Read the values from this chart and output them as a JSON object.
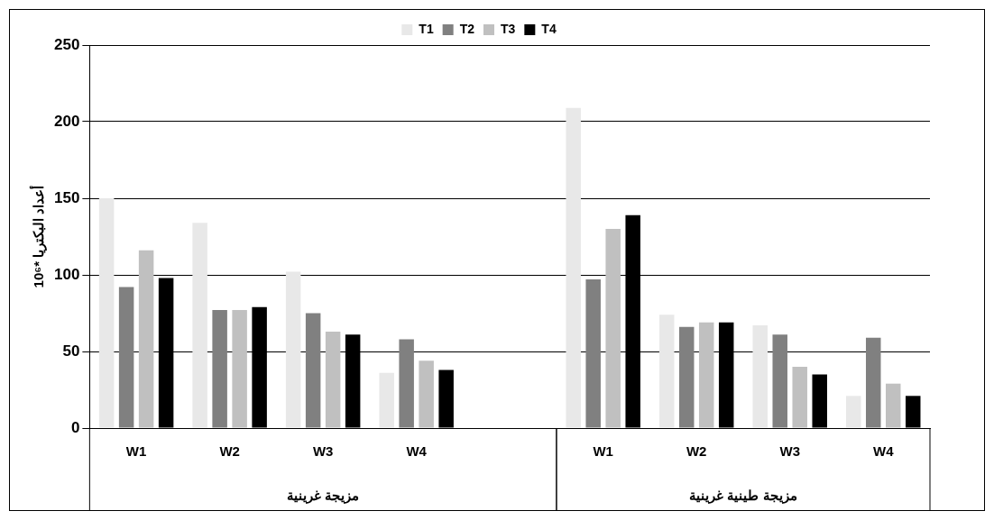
{
  "chart_data": {
    "type": "bar",
    "categories": [
      "W1",
      "W2",
      "W3",
      "W4",
      null,
      "W1",
      "W2",
      "W3",
      "W4"
    ],
    "ylabel": "أعداد البكتريا *10⁶",
    "series": [
      {
        "name": "T1",
        "color": "#e8e8e8",
        "values": [
          150,
          134,
          102,
          36,
          null,
          209,
          74,
          67,
          21
        ]
      },
      {
        "name": "T2",
        "color": "#808080",
        "values": [
          92,
          77,
          75,
          58,
          null,
          97,
          66,
          61,
          59
        ]
      },
      {
        "name": "T3",
        "color": "#c0c0c0",
        "values": [
          116,
          77,
          63,
          44,
          null,
          130,
          69,
          40,
          29
        ]
      },
      {
        "name": "T4",
        "color": "#000000",
        "values": [
          98,
          79,
          61,
          38,
          null,
          139,
          69,
          35,
          21
        ]
      }
    ],
    "ylim": [
      0,
      250
    ],
    "yticks": [
      0,
      50,
      100,
      150,
      200,
      250
    ],
    "grid": "y",
    "legend": "top",
    "annotations": [
      "مزيجة غرينية",
      "مزيجة طينية غرينية"
    ]
  }
}
